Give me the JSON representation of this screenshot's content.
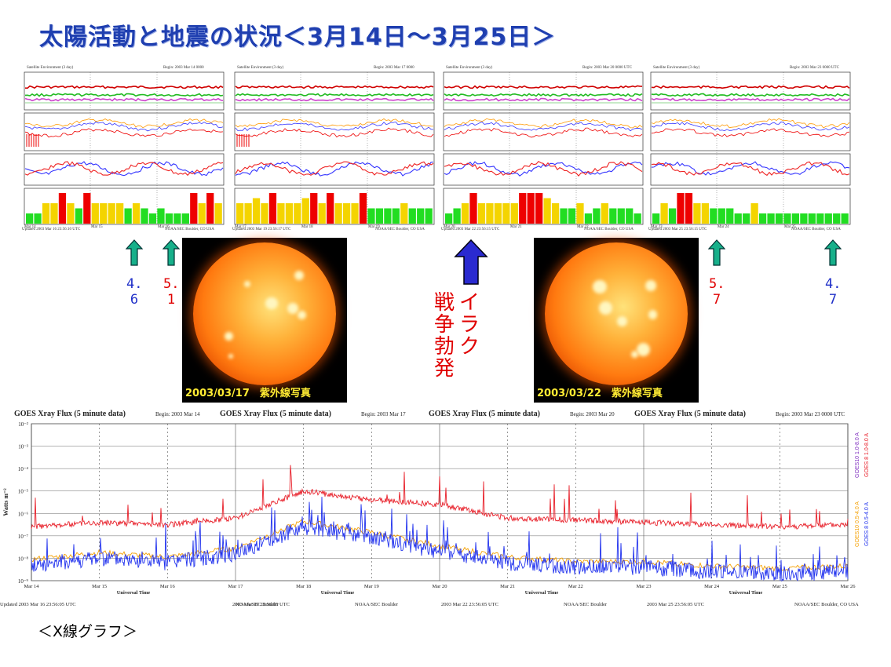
{
  "title": "太陽活動と地震の状況＜3月14日～3月25日＞",
  "env_panels": [
    {
      "header_left": "Satellite Environment (3 day)",
      "header_right": "Begin: 2003 Mar 14 0000",
      "footer_left": "Updated 2003 Mar 16 23:56:10 UTC",
      "footer_right": "NOAA/SEC Boulder, CO USA",
      "days": [
        "Mar 14",
        "Mar 15",
        "Mar 16"
      ],
      "kp": [
        2,
        2,
        4,
        4,
        6,
        4,
        3,
        6,
        4,
        4,
        4,
        4,
        3,
        4,
        3,
        2,
        3,
        2,
        2,
        2,
        6,
        4,
        6,
        4
      ]
    },
    {
      "header_left": "Satellite Environment (3 day)",
      "header_right": "Begin: 2003 Mar 17 0000",
      "footer_left": "Updated 2003 Mar 19 23:56:17 UTC",
      "footer_right": "NOAA/SEC Boulder, CO USA",
      "days": [
        "Mar 17",
        "Mar 18",
        "Mar 19"
      ],
      "kp": [
        4,
        4,
        5,
        4,
        6,
        4,
        4,
        4,
        5,
        6,
        4,
        6,
        4,
        4,
        4,
        6,
        3,
        3,
        3,
        3,
        4,
        3,
        3,
        3
      ]
    },
    {
      "header_left": "Satellite Environment (3 day)",
      "header_right": "Begin: 2003 Mar 20 0000 UTC",
      "footer_left": "Updated 2003 Mar 22 23:56:15 UTC",
      "footer_right": "NOAA/SEC Boulder, CO USA",
      "days": [
        "Mar 20",
        "Mar 21",
        "Mar 22"
      ],
      "kp": [
        2,
        3,
        4,
        6,
        4,
        4,
        4,
        4,
        4,
        6,
        6,
        6,
        5,
        4,
        3,
        3,
        4,
        2,
        3,
        4,
        3,
        3,
        3,
        2
      ]
    },
    {
      "header_left": "Satellite Environment (3 day)",
      "header_right": "Begin: 2003 Mar 23 0000 UTC",
      "footer_left": "Updated 2003 Mar 25 23:56:15 UTC",
      "footer_right": "NOAA/SEC Boulder, CO USA",
      "days": [
        "Mar 23",
        "Mar 24",
        "Mar 25"
      ],
      "kp": [
        2,
        4,
        3,
        6,
        6,
        4,
        4,
        3,
        3,
        3,
        2,
        2,
        4,
        2,
        2,
        2,
        2,
        2,
        2,
        2,
        2,
        2,
        2,
        2
      ]
    }
  ],
  "sun_images": [
    {
      "caption": "2003/03/17　紫外線写真"
    },
    {
      "caption": "2003/03/22　紫外線写真"
    }
  ],
  "quake_markers": [
    {
      "mag_line1": "4.",
      "mag_line2": "6",
      "color": "#2030c8"
    },
    {
      "mag_line1": "5.",
      "mag_line2": "1",
      "color": "#e00000"
    },
    {
      "mag_line1": "5.",
      "mag_line2": "7",
      "color": "#e00000"
    },
    {
      "mag_line1": "4.",
      "mag_line2": "7",
      "color": "#2030c8"
    }
  ],
  "war_label": {
    "col1": "戦争勃発",
    "col2": "イラク"
  },
  "colors": {
    "title": "#1f3fb0",
    "quake_arrow": "#17b08a",
    "war_arrow": "#2a2ad0",
    "kp_green": "#22dd22",
    "kp_yellow": "#f4d400",
    "kp_red": "#ee0000",
    "xray_long": "#e8202a",
    "xray_short": "#2233ee",
    "xray_alt": "#f5a000"
  },
  "chart_data": {
    "type": "line",
    "panels": [
      {
        "title": "GOES Xray Flux (5 minute data)",
        "begin": "Begin: 2003 Mar 14",
        "updated": "Updated 2003 Mar 16 23:56:05 UTC",
        "credit": "NOAA/SEC Boulder"
      },
      {
        "title": "GOES Xray Flux (5 minute data)",
        "begin": "Begin: 2003 Mar 17",
        "updated": "2003 Mar 19 23:56:05 UTC",
        "credit": "NOAA/SEC Boulder"
      },
      {
        "title": "GOES Xray Flux (5 minute data)",
        "begin": "Begin: 2003 Mar 20",
        "updated": "2003 Mar 22 23:56:05 UTC",
        "credit": "NOAA/SEC Boulder"
      },
      {
        "title": "GOES Xray Flux (5 minute data)",
        "begin": "Begin: 2003 Mar 23 0000 UTC",
        "updated": "2003 Mar 25 23:56:05 UTC",
        "credit": "NOAA/SEC Boulder, CO USA"
      }
    ],
    "ylabel": "Watts m⁻²",
    "ylim": [
      -9,
      -2
    ],
    "yscale": "log",
    "yticks": [
      "10⁻²",
      "10⁻³",
      "10⁻⁴",
      "10⁻⁵",
      "10⁻⁶",
      "10⁻⁷",
      "10⁻⁸",
      "10⁻⁹"
    ],
    "xlabel": "Universal Time",
    "xticks": [
      "Mar 14",
      "Mar 15",
      "Mar 16",
      "Mar 17",
      "Mar 18",
      "Mar 19",
      "Mar 20",
      "Mar 21",
      "Mar 22",
      "Mar 23",
      "Mar 24",
      "Mar 25",
      "Mar 26"
    ],
    "series": [
      {
        "name": "GOES10 1.0-8.0 A",
        "color": "#8030c0"
      },
      {
        "name": "GOES 8 1.0-8.0 A",
        "color": "#e8202a",
        "x": [
          "Mar 14",
          "Mar 15",
          "Mar 16",
          "Mar 17",
          "Mar 18",
          "Mar 19",
          "Mar 20",
          "Mar 21",
          "Mar 22",
          "Mar 23",
          "Mar 24",
          "Mar 25",
          "Mar 26"
        ],
        "values": [
          -6.6,
          -6.4,
          -6.5,
          -6.2,
          -5.0,
          -5.4,
          -5.6,
          -6.2,
          -6.3,
          -6.4,
          -6.5,
          -6.6,
          -6.5
        ]
      },
      {
        "name": "GOES10 0.5-4.0 A",
        "color": "#f5a000"
      },
      {
        "name": "GOES 8 0.5-4.0 A",
        "color": "#2233ee",
        "x": [
          "Mar 14",
          "Mar 15",
          "Mar 16",
          "Mar 17",
          "Mar 18",
          "Mar 19",
          "Mar 20",
          "Mar 21",
          "Mar 22",
          "Mar 23",
          "Mar 24",
          "Mar 25",
          "Mar 26"
        ],
        "values": [
          -8.3,
          -8.0,
          -8.2,
          -7.8,
          -6.6,
          -7.1,
          -7.7,
          -8.2,
          -8.4,
          -8.4,
          -8.6,
          -8.7,
          -8.6
        ]
      }
    ]
  },
  "bottom_caption": "＜X線グラフ＞"
}
